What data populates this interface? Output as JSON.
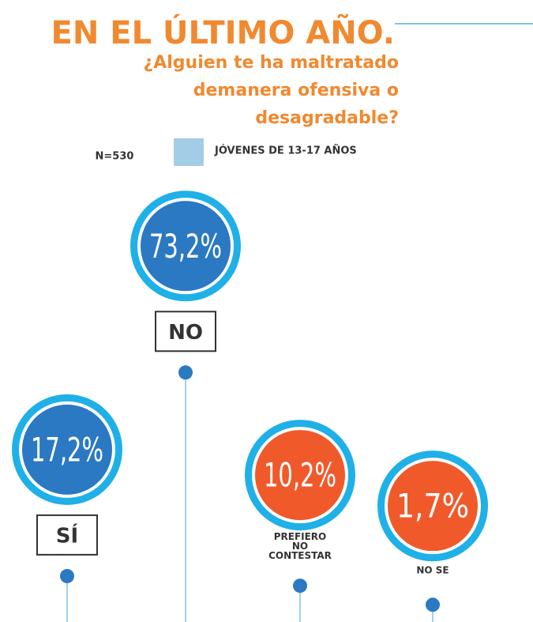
{
  "chart_data": {
    "type": "lollipop",
    "title": "EN EL ÚLTIMO AÑO.",
    "subtitle": [
      "¿Alguien te ha maltratado",
      "demanera ofensiva o",
      "desagradable?"
    ],
    "annotation": "N=530",
    "legend": "JÓVENES DE 13-17 AÑOS",
    "legend_color": "#a3cde6",
    "ring_color": "#1fb0e8",
    "categories": [
      "SÍ",
      "NO",
      "PREFIERO NO CONTESTAR",
      "NO SE"
    ],
    "values": [
      17.2,
      73.2,
      10.2,
      1.7
    ],
    "value_labels": [
      "17,2%",
      "73,2%",
      "10,2%",
      "1,7%"
    ],
    "colors": [
      "#2b79c2",
      "#2b79c2",
      "#f05a2b",
      "#f05a2b"
    ]
  }
}
